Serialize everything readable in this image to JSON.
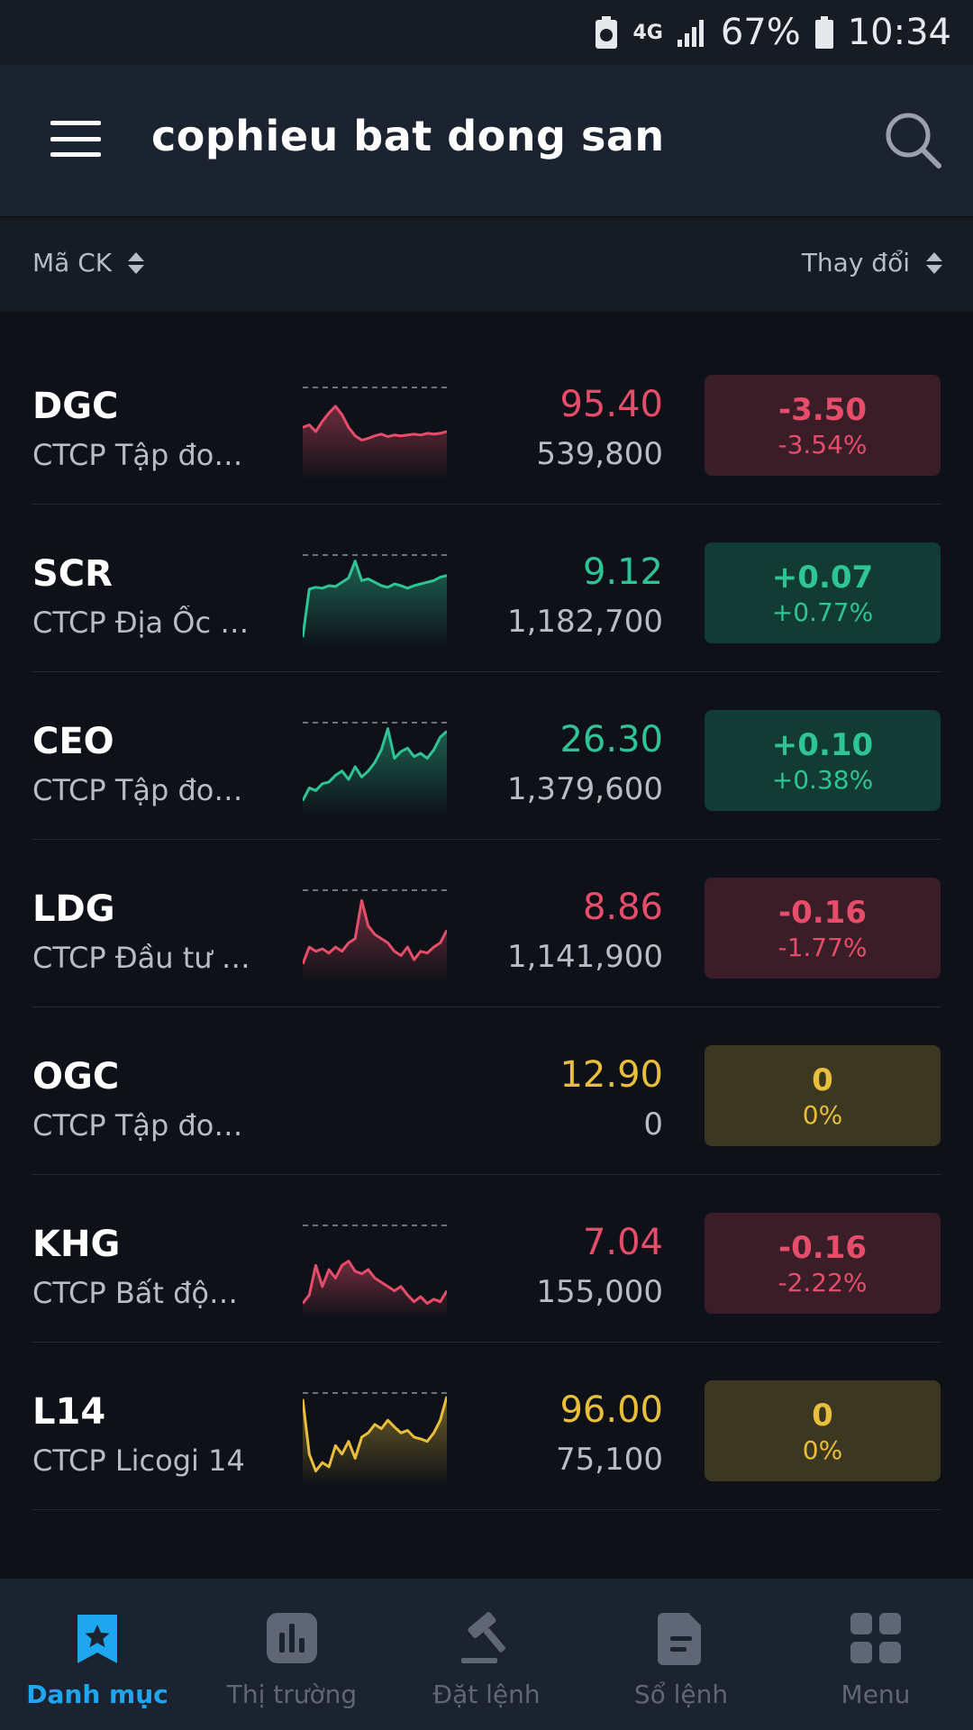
{
  "status_bar": {
    "network": "4G",
    "battery": "67%",
    "time": "10:34"
  },
  "header": {
    "title": "cophieu bat dong san"
  },
  "sort_bar": {
    "left_label": "Mã CK",
    "right_label": "Thay đổi"
  },
  "colors": {
    "down": "#e54d6b",
    "up": "#2ec496",
    "flat": "#e8be3c",
    "active_nav": "#1ea7f0"
  },
  "stocks": [
    {
      "symbol": "DGC",
      "name": "CTCP Tập đo…",
      "price": "95.40",
      "volume": "539,800",
      "change": "-3.50",
      "change_pct": "-3.54%",
      "trend": "down",
      "sparkline": [
        0.55,
        0.58,
        0.5,
        0.62,
        0.72,
        0.8,
        0.7,
        0.55,
        0.45,
        0.4,
        0.42,
        0.45,
        0.47,
        0.44,
        0.46,
        0.45,
        0.46,
        0.47,
        0.46,
        0.48,
        0.47,
        0.48,
        0.5
      ]
    },
    {
      "symbol": "SCR",
      "name": "CTCP Địa Ốc …",
      "price": "9.12",
      "volume": "1,182,700",
      "change": "+0.07",
      "change_pct": "+0.77%",
      "trend": "up",
      "sparkline": [
        0.05,
        0.62,
        0.64,
        0.63,
        0.66,
        0.65,
        0.7,
        0.75,
        0.95,
        0.72,
        0.74,
        0.7,
        0.66,
        0.64,
        0.68,
        0.66,
        0.63,
        0.66,
        0.68,
        0.7,
        0.72,
        0.76,
        0.78
      ]
    },
    {
      "symbol": "CEO",
      "name": "CTCP Tập đo…",
      "price": "26.30",
      "volume": "1,379,600",
      "change": "+0.10",
      "change_pct": "+0.38%",
      "trend": "up",
      "sparkline": [
        0.1,
        0.25,
        0.22,
        0.3,
        0.32,
        0.4,
        0.45,
        0.35,
        0.5,
        0.38,
        0.45,
        0.55,
        0.7,
        0.95,
        0.6,
        0.68,
        0.72,
        0.62,
        0.66,
        0.6,
        0.7,
        0.85,
        0.92
      ]
    },
    {
      "symbol": "LDG",
      "name": "CTCP Đầu tư …",
      "price": "8.86",
      "volume": "1,141,900",
      "change": "-0.16",
      "change_pct": "-1.77%",
      "trend": "down",
      "sparkline": [
        0.15,
        0.35,
        0.3,
        0.33,
        0.28,
        0.35,
        0.3,
        0.4,
        0.45,
        0.9,
        0.6,
        0.5,
        0.45,
        0.4,
        0.3,
        0.25,
        0.35,
        0.2,
        0.3,
        0.28,
        0.35,
        0.4,
        0.55
      ]
    },
    {
      "symbol": "OGC",
      "name": "CTCP Tập đo…",
      "price": "12.90",
      "volume": "0",
      "change": "0",
      "change_pct": "0%",
      "trend": "flat",
      "sparkline": []
    },
    {
      "symbol": "KHG",
      "name": "CTCP Bất độ…",
      "price": "7.04",
      "volume": "155,000",
      "change": "-0.16",
      "change_pct": "-2.22%",
      "trend": "down",
      "sparkline": [
        0.1,
        0.2,
        0.55,
        0.3,
        0.5,
        0.4,
        0.55,
        0.6,
        0.48,
        0.45,
        0.5,
        0.4,
        0.35,
        0.3,
        0.25,
        0.3,
        0.2,
        0.12,
        0.18,
        0.1,
        0.15,
        0.12,
        0.25
      ]
    },
    {
      "symbol": "L14",
      "name": "CTCP Licogi 14",
      "price": "96.00",
      "volume": "75,100",
      "change": "0",
      "change_pct": "0%",
      "trend": "flat",
      "sparkline": [
        0.95,
        0.3,
        0.1,
        0.2,
        0.15,
        0.4,
        0.3,
        0.45,
        0.25,
        0.5,
        0.55,
        0.65,
        0.6,
        0.7,
        0.62,
        0.55,
        0.58,
        0.5,
        0.48,
        0.45,
        0.55,
        0.7,
        0.98
      ]
    }
  ],
  "bottom_nav": [
    {
      "label": "Danh mục",
      "icon": "bookmark-star-icon",
      "active": true
    },
    {
      "label": "Thị trường",
      "icon": "bar-chart-icon",
      "active": false
    },
    {
      "label": "Đặt lệnh",
      "icon": "gavel-icon",
      "active": false
    },
    {
      "label": "Sổ lệnh",
      "icon": "document-icon",
      "active": false
    },
    {
      "label": "Menu",
      "icon": "grid-icon",
      "active": false
    }
  ]
}
